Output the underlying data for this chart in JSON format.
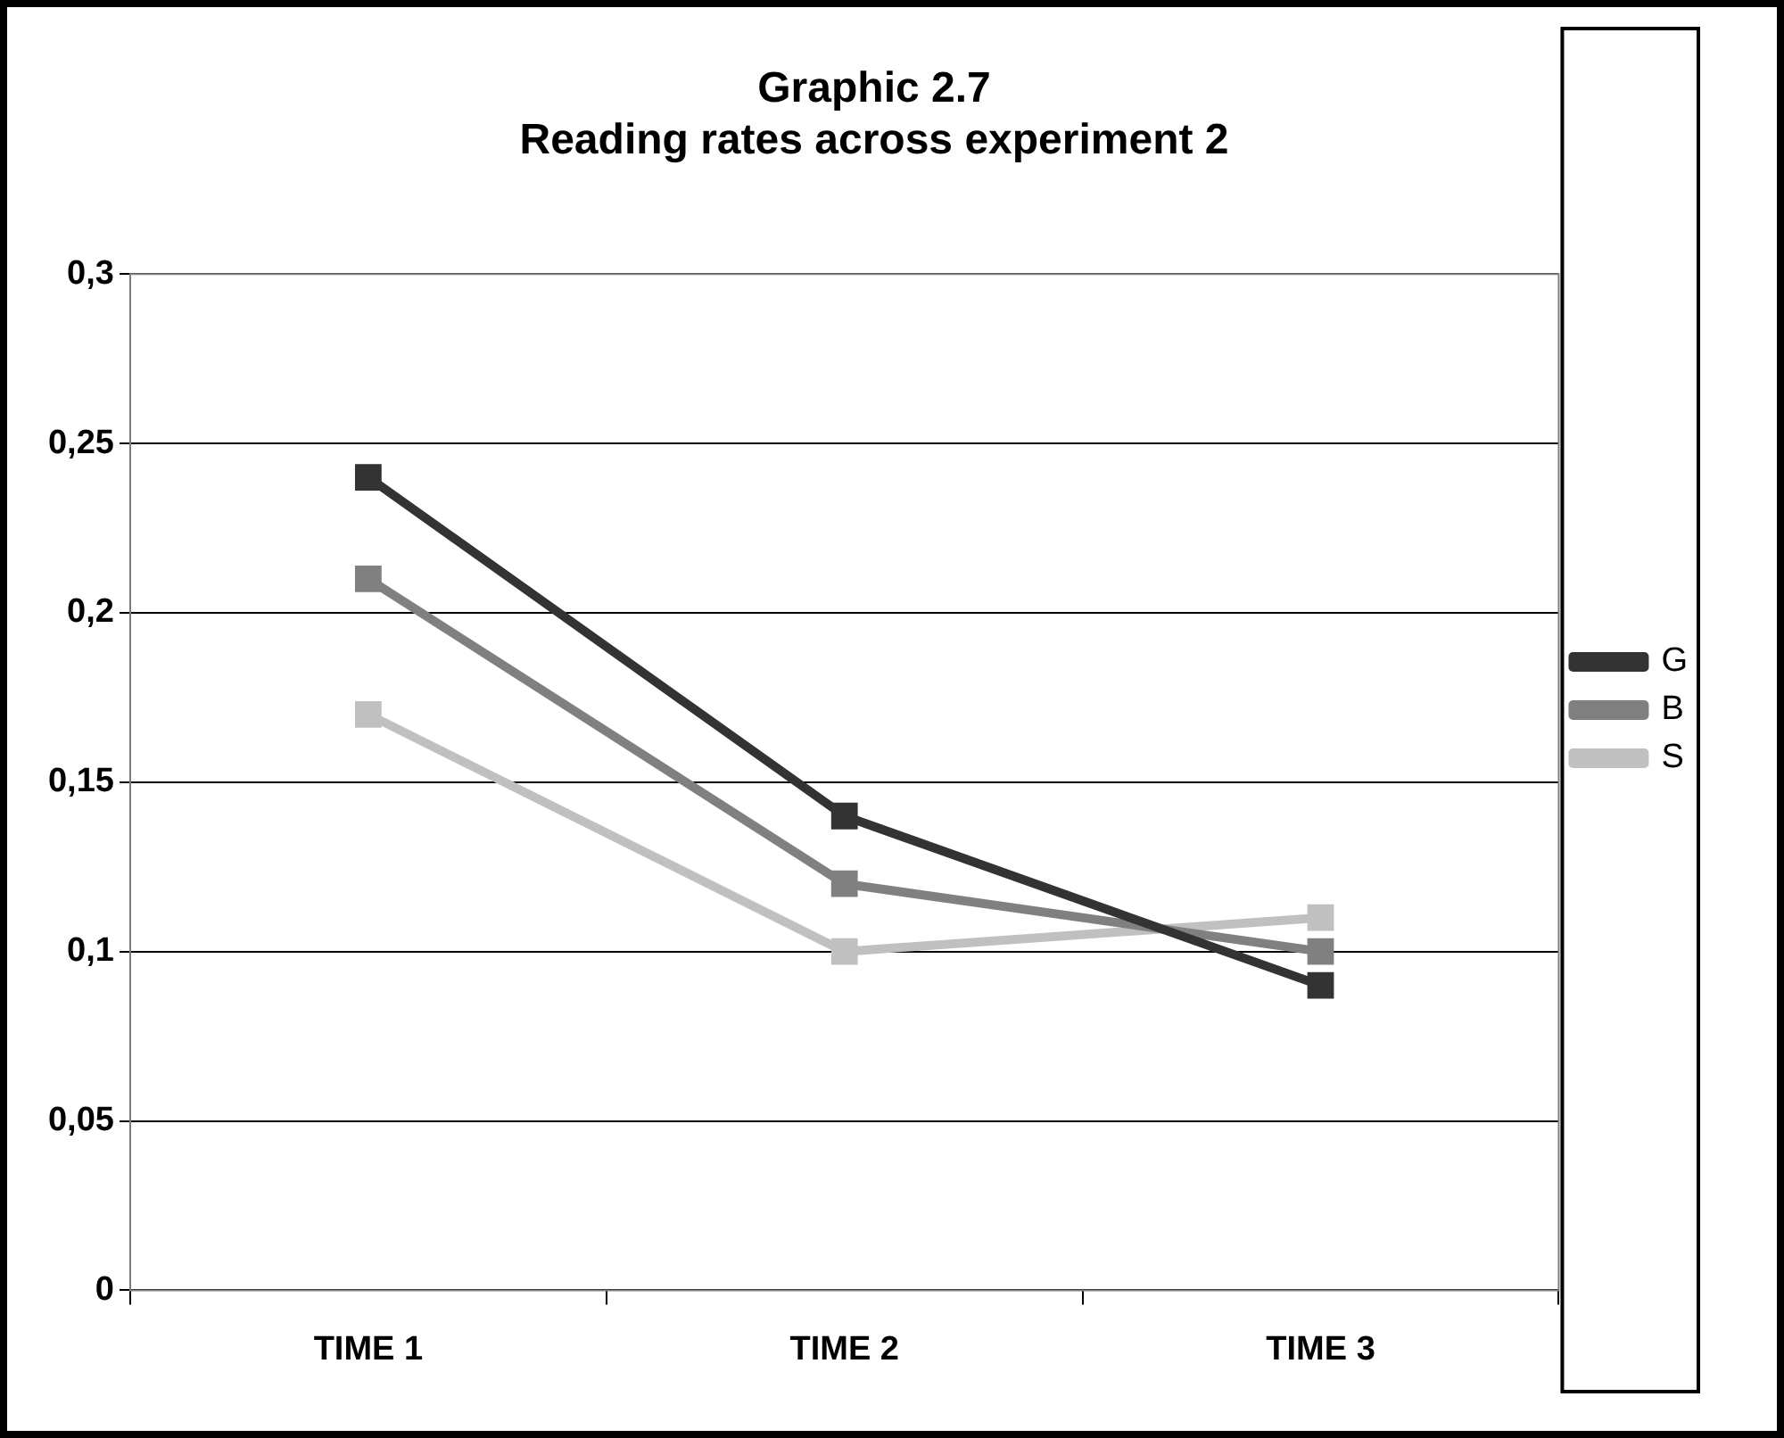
{
  "chart_data": {
    "type": "line",
    "title": "Graphic 2.7\nReading rates across experiment 2",
    "categories": [
      "TIME 1",
      "TIME 2",
      "TIME 3"
    ],
    "series": [
      {
        "name": "G",
        "color": "#333333",
        "values": [
          0.24,
          0.14,
          0.09
        ]
      },
      {
        "name": "B",
        "color": "#808080",
        "values": [
          0.21,
          0.12,
          0.1
        ]
      },
      {
        "name": "S",
        "color": "#c0c0c0",
        "values": [
          0.17,
          0.1,
          0.11
        ]
      }
    ],
    "ylim": [
      0,
      0.3
    ],
    "yticks": [
      0,
      {
        "value": 0.05,
        "label": "0,05"
      },
      {
        "value": 0.1,
        "label": "0,1"
      },
      {
        "value": 0.15,
        "label": "0,15"
      },
      {
        "value": 0.2,
        "label": "0,2"
      },
      {
        "value": 0.25,
        "label": "0,25"
      },
      {
        "value": 0.3,
        "label": "0,3"
      }
    ],
    "grid": "y",
    "legend": "right",
    "marker": "square",
    "line_style": "solid"
  }
}
